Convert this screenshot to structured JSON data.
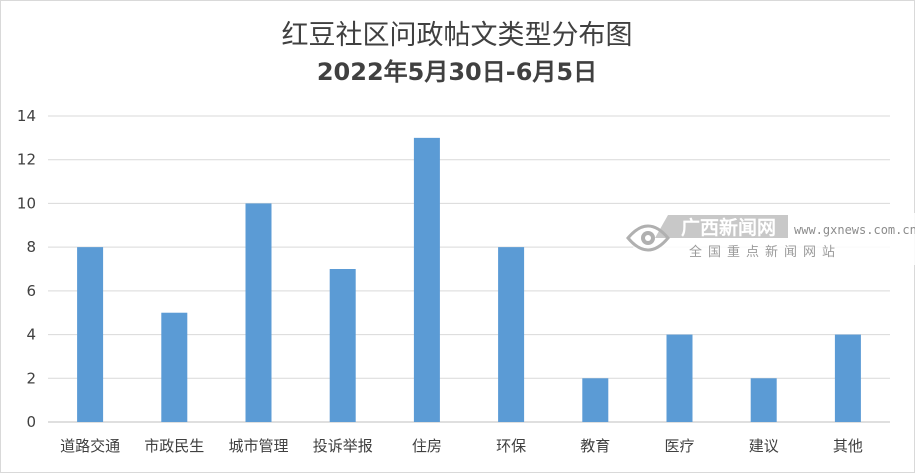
{
  "chart_data": {
    "type": "bar",
    "title": "红豆社区问政帖文类型分布图",
    "subtitle": "2022年5月30日-6月5日",
    "categories": [
      "道路交通",
      "市政民生",
      "城市管理",
      "投诉举报",
      "住房",
      "环保",
      "教育",
      "医疗",
      "建议",
      "其他"
    ],
    "values": [
      8,
      5,
      10,
      7,
      13,
      8,
      2,
      4,
      2,
      4
    ],
    "yticks": [
      "0",
      "2",
      "4",
      "6",
      "8",
      "10",
      "12",
      "14"
    ],
    "ylim": [
      0,
      14
    ],
    "grid": true,
    "legend": "none",
    "bar_color": "#5b9bd5"
  },
  "watermark": {
    "title": "广西新闻网",
    "url": "www.gxnews.com.cn",
    "subtitle": "全国重点新闻网站",
    "color": "#c0c0c0",
    "icon": "eye-logo-icon"
  }
}
